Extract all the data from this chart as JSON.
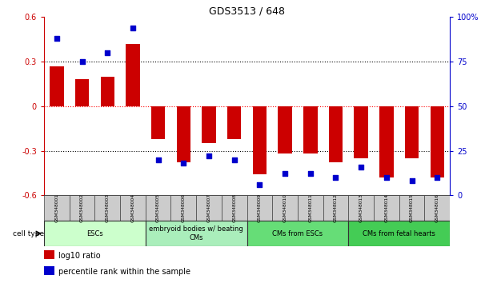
{
  "title": "GDS3513 / 648",
  "samples": [
    "GSM348001",
    "GSM348002",
    "GSM348003",
    "GSM348004",
    "GSM348005",
    "GSM348006",
    "GSM348007",
    "GSM348008",
    "GSM348009",
    "GSM348010",
    "GSM348011",
    "GSM348012",
    "GSM348013",
    "GSM348014",
    "GSM348015",
    "GSM348016"
  ],
  "log10_ratio": [
    0.27,
    0.18,
    0.2,
    0.42,
    -0.22,
    -0.38,
    -0.25,
    -0.22,
    -0.46,
    -0.32,
    -0.32,
    -0.38,
    -0.35,
    -0.48,
    -0.35,
    -0.48
  ],
  "percentile_rank": [
    88,
    75,
    80,
    94,
    20,
    18,
    22,
    20,
    6,
    12,
    12,
    10,
    16,
    10,
    8,
    10
  ],
  "cell_types": [
    {
      "label": "ESCs",
      "start": 0,
      "end": 4,
      "color": "#ccffcc"
    },
    {
      "label": "embryoid bodies w/ beating\nCMs",
      "start": 4,
      "end": 8,
      "color": "#aaeebb"
    },
    {
      "label": "CMs from ESCs",
      "start": 8,
      "end": 12,
      "color": "#66dd77"
    },
    {
      "label": "CMs from fetal hearts",
      "start": 12,
      "end": 16,
      "color": "#44cc55"
    }
  ],
  "bar_color": "#cc0000",
  "dot_color": "#0000cc",
  "ylim_left": [
    -0.6,
    0.6
  ],
  "ylim_right": [
    0,
    100
  ],
  "yticks_left": [
    -0.6,
    -0.3,
    0,
    0.3,
    0.6
  ],
  "yticks_right": [
    0,
    25,
    50,
    75,
    100
  ],
  "ytick_labels_right": [
    "0",
    "25",
    "50",
    "75",
    "100%"
  ],
  "bg_color": "#ffffff",
  "legend_items": [
    {
      "color": "#cc0000",
      "label": "log10 ratio"
    },
    {
      "color": "#0000cc",
      "label": "percentile rank within the sample"
    }
  ]
}
